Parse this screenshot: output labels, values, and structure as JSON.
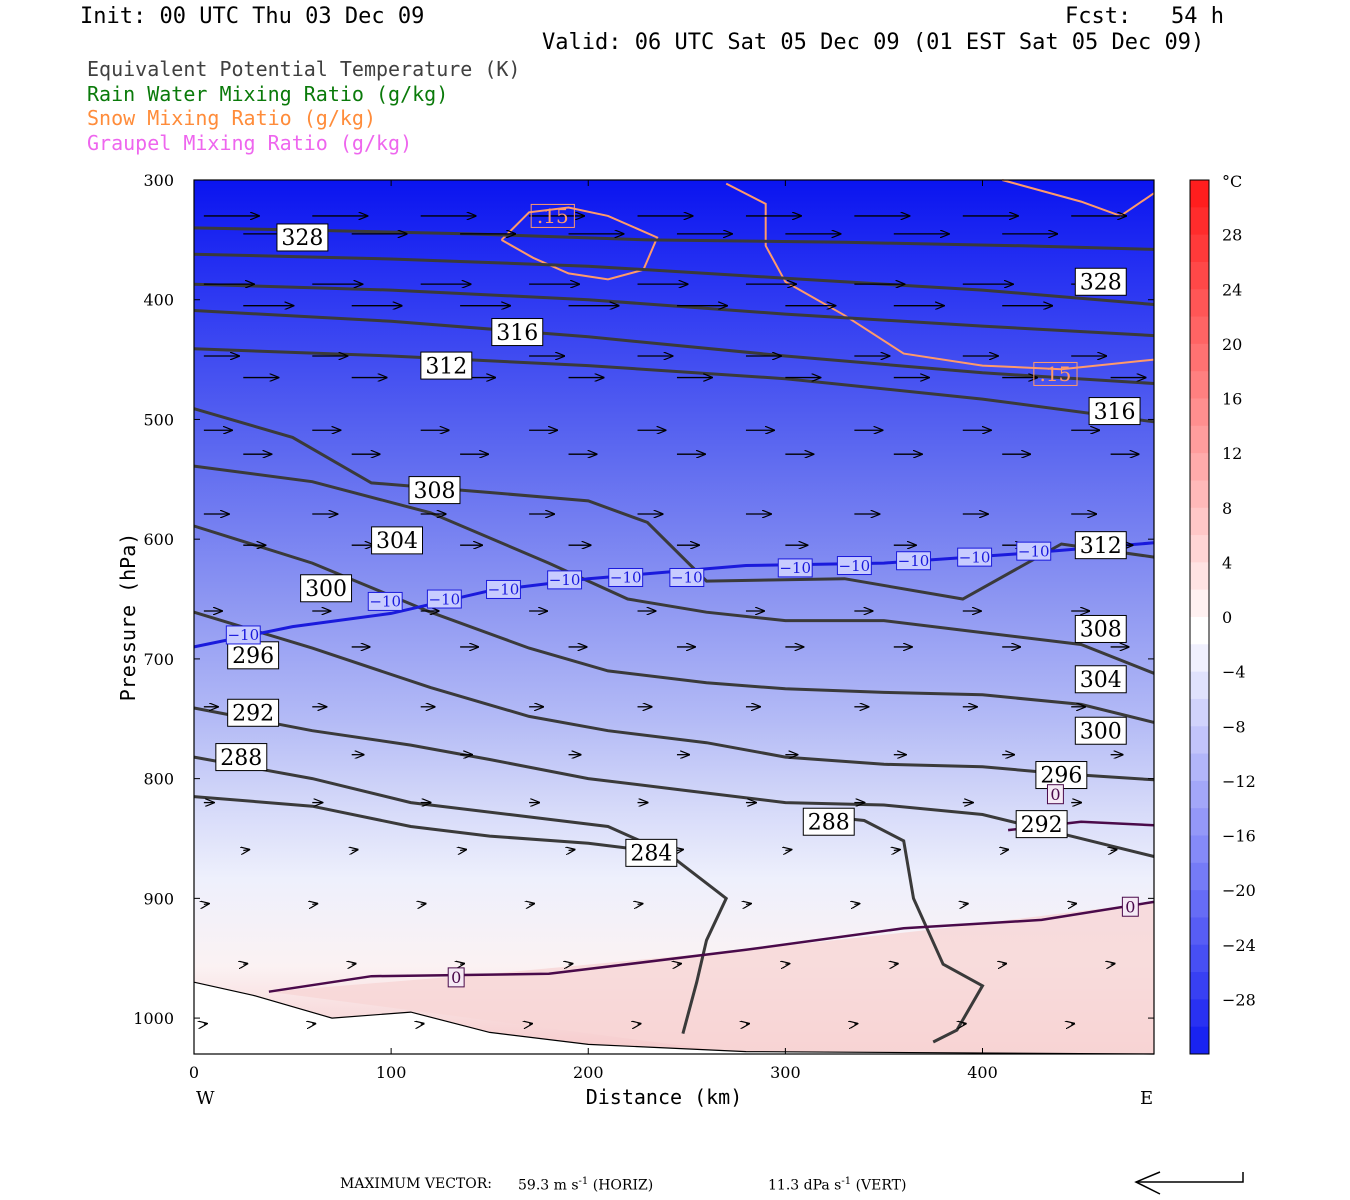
{
  "header": {
    "init": "Init: 00 UTC Thu 03 Dec 09",
    "fcst": "Fcst:   54 h",
    "valid": "Valid: 06 UTC Sat 05 Dec 09 (01 EST Sat 05 Dec 09)"
  },
  "legend": [
    {
      "label": "Equivalent Potential Temperature (K)",
      "color": "#404040"
    },
    {
      "label": "Rain Water Mixing Ratio (g/kg)",
      "color": "#0a7a0a"
    },
    {
      "label": "Snow Mixing Ratio (g/kg)",
      "color": "#ff8c3a"
    },
    {
      "label": "Graupel Mixing Ratio (g/kg)",
      "color": "#ee66ee"
    }
  ],
  "footer": {
    "max_vector_label": "MAXIMUM VECTOR:",
    "horiz_value": "59.3",
    "horiz_unit": "m s",
    "horiz_tag": "(HORIZ)",
    "vert_value": "11.3",
    "vert_unit": "dPa s",
    "vert_tag": "(VERT)",
    "exponent": "-1"
  },
  "chart_data": {
    "type": "contour",
    "xlabel": "Distance (km)",
    "ylabel": "Pressure (hPa)",
    "xlim": [
      0,
      487
    ],
    "ylim": [
      1030,
      300
    ],
    "x_ticks": [
      0,
      100,
      200,
      300,
      400
    ],
    "y_ticks": [
      300,
      400,
      500,
      600,
      700,
      800,
      900,
      1000
    ],
    "x_end_labels": {
      "left": "W",
      "right": "E"
    },
    "colorbar": {
      "unit": "°C",
      "ticks": [
        28,
        24,
        20,
        16,
        12,
        8,
        4,
        0,
        -4,
        -8,
        -12,
        -16,
        -20,
        -24,
        -28
      ],
      "range": [
        -32,
        32
      ]
    },
    "theta_e_contours": [
      {
        "value": 328,
        "points": [
          [
            0,
            340
          ],
          [
            60,
            342
          ],
          [
            140,
            345
          ],
          [
            230,
            350
          ],
          [
            330,
            352
          ],
          [
            420,
            355
          ],
          [
            487,
            358
          ]
        ]
      },
      {
        "value": 324,
        "points": [
          [
            0,
            362
          ],
          [
            100,
            366
          ],
          [
            200,
            372
          ],
          [
            300,
            382
          ],
          [
            400,
            392
          ],
          [
            487,
            404
          ]
        ]
      },
      {
        "value": 320,
        "points": [
          [
            0,
            387
          ],
          [
            100,
            392
          ],
          [
            200,
            400
          ],
          [
            300,
            412
          ],
          [
            400,
            422
          ],
          [
            487,
            430
          ]
        ]
      },
      {
        "value": 316,
        "points": [
          [
            0,
            409
          ],
          [
            100,
            418
          ],
          [
            200,
            431
          ],
          [
            300,
            447
          ],
          [
            400,
            461
          ],
          [
            487,
            470
          ]
        ]
      },
      {
        "value": 312,
        "points": [
          [
            0,
            441
          ],
          [
            100,
            447
          ],
          [
            200,
            455
          ],
          [
            300,
            466
          ],
          [
            400,
            483
          ],
          [
            487,
            502
          ]
        ]
      },
      {
        "value": 308,
        "points": [
          [
            0,
            491
          ],
          [
            50,
            515
          ],
          [
            90,
            553
          ],
          [
            150,
            561
          ],
          [
            200,
            568
          ],
          [
            230,
            586
          ],
          [
            260,
            635
          ],
          [
            330,
            633
          ],
          [
            390,
            650
          ],
          [
            440,
            604
          ],
          [
            487,
            615
          ]
        ]
      },
      {
        "value": 304,
        "points": [
          [
            0,
            539
          ],
          [
            60,
            552
          ],
          [
            120,
            578
          ],
          [
            180,
            620
          ],
          [
            220,
            650
          ],
          [
            260,
            661
          ],
          [
            300,
            668
          ],
          [
            350,
            668
          ],
          [
            400,
            678
          ],
          [
            450,
            688
          ],
          [
            487,
            712
          ]
        ]
      },
      {
        "value": 300,
        "points": [
          [
            0,
            589
          ],
          [
            60,
            620
          ],
          [
            120,
            661
          ],
          [
            170,
            691
          ],
          [
            210,
            710
          ],
          [
            260,
            720
          ],
          [
            300,
            725
          ],
          [
            350,
            728
          ],
          [
            400,
            730
          ],
          [
            450,
            738
          ],
          [
            487,
            753
          ]
        ]
      },
      {
        "value": 296,
        "points": [
          [
            0,
            661
          ],
          [
            60,
            691
          ],
          [
            120,
            724
          ],
          [
            170,
            748
          ],
          [
            210,
            760
          ],
          [
            260,
            770
          ],
          [
            300,
            782
          ],
          [
            350,
            788
          ],
          [
            400,
            790
          ],
          [
            440,
            796
          ],
          [
            487,
            801
          ]
        ]
      },
      {
        "value": 292,
        "points": [
          [
            0,
            741
          ],
          [
            60,
            760
          ],
          [
            110,
            772
          ],
          [
            150,
            784
          ],
          [
            200,
            800
          ],
          [
            250,
            810
          ],
          [
            300,
            820
          ],
          [
            350,
            822
          ],
          [
            400,
            830
          ],
          [
            440,
            846
          ],
          [
            487,
            865
          ]
        ]
      },
      {
        "value": 288,
        "points": [
          [
            0,
            782
          ],
          [
            60,
            800
          ],
          [
            110,
            820
          ],
          [
            160,
            830
          ],
          [
            210,
            840
          ],
          [
            240,
            862
          ],
          [
            270,
            900
          ],
          [
            260,
            935
          ],
          [
            255,
            970
          ],
          [
            248,
            1013
          ]
        ]
      },
      {
        "value": 288,
        "points": [
          [
            310,
            830
          ],
          [
            340,
            835
          ],
          [
            360,
            852
          ],
          [
            365,
            900
          ],
          [
            380,
            955
          ],
          [
            400,
            973
          ],
          [
            387,
            1010
          ],
          [
            375,
            1020
          ]
        ]
      },
      {
        "value": 284,
        "points": [
          [
            0,
            815
          ],
          [
            60,
            823
          ],
          [
            110,
            840
          ],
          [
            150,
            848
          ],
          [
            200,
            854
          ],
          [
            240,
            862
          ]
        ]
      }
    ],
    "temperature_zero_contours": [
      {
        "points": [
          [
            38,
            978
          ],
          [
            90,
            965
          ],
          [
            180,
            963
          ],
          [
            280,
            943
          ],
          [
            360,
            925
          ],
          [
            430,
            918
          ],
          [
            487,
            903
          ]
        ]
      },
      {
        "points": [
          [
            413,
            843
          ],
          [
            450,
            836
          ],
          [
            487,
            839
          ]
        ]
      }
    ],
    "temperature_m10_contour": {
      "points": [
        [
          0,
          690
        ],
        [
          50,
          673
        ],
        [
          100,
          662
        ],
        [
          150,
          643
        ],
        [
          200,
          633
        ],
        [
          280,
          622
        ],
        [
          350,
          620
        ],
        [
          420,
          612
        ],
        [
          487,
          603
        ]
      ]
    },
    "snow_contours": [
      {
        "points": [
          [
            156,
            350
          ],
          [
            170,
            327
          ],
          [
            190,
            323
          ],
          [
            210,
            330
          ],
          [
            235,
            348
          ],
          [
            228,
            375
          ],
          [
            210,
            383
          ],
          [
            190,
            378
          ],
          [
            172,
            365
          ],
          [
            156,
            350
          ]
        ]
      },
      {
        "points": [
          [
            270,
            303
          ],
          [
            290,
            320
          ],
          [
            290,
            355
          ],
          [
            300,
            385
          ],
          [
            330,
            413
          ],
          [
            360,
            445
          ],
          [
            400,
            455
          ],
          [
            440,
            458
          ],
          [
            487,
            450
          ]
        ]
      },
      {
        "points": [
          [
            410,
            300
          ],
          [
            450,
            318
          ],
          [
            470,
            330
          ],
          [
            487,
            311
          ]
        ]
      }
    ],
    "terrain_line": {
      "points": [
        [
          0,
          970
        ],
        [
          30,
          981
        ],
        [
          70,
          1000
        ],
        [
          110,
          995
        ],
        [
          150,
          1012
        ],
        [
          200,
          1022
        ],
        [
          280,
          1028
        ],
        [
          487,
          1030
        ]
      ]
    },
    "labels": [
      {
        "text": "328",
        "x": 55,
        "y": 348,
        "kind": "theta"
      },
      {
        "text": "328",
        "x": 460,
        "y": 385,
        "kind": "theta"
      },
      {
        "text": "316",
        "x": 164,
        "y": 427,
        "kind": "theta"
      },
      {
        "text": "312",
        "x": 128,
        "y": 455,
        "kind": "theta"
      },
      {
        "text": "316",
        "x": 467,
        "y": 493,
        "kind": "theta"
      },
      {
        "text": "308",
        "x": 122,
        "y": 559,
        "kind": "theta"
      },
      {
        "text": "304",
        "x": 103,
        "y": 601,
        "kind": "theta"
      },
      {
        "text": "312",
        "x": 460,
        "y": 605,
        "kind": "theta"
      },
      {
        "text": "300",
        "x": 67,
        "y": 641,
        "kind": "theta"
      },
      {
        "text": "308",
        "x": 460,
        "y": 675,
        "kind": "theta"
      },
      {
        "text": "296",
        "x": 30,
        "y": 697,
        "kind": "theta"
      },
      {
        "text": "304",
        "x": 460,
        "y": 717,
        "kind": "theta"
      },
      {
        "text": "292",
        "x": 30,
        "y": 745,
        "kind": "theta"
      },
      {
        "text": "300",
        "x": 460,
        "y": 760,
        "kind": "theta"
      },
      {
        "text": "288",
        "x": 24,
        "y": 782,
        "kind": "theta"
      },
      {
        "text": "296",
        "x": 440,
        "y": 797,
        "kind": "theta"
      },
      {
        "text": "288",
        "x": 322,
        "y": 836,
        "kind": "theta"
      },
      {
        "text": "292",
        "x": 430,
        "y": 838,
        "kind": "theta"
      },
      {
        "text": "284",
        "x": 232,
        "y": 862,
        "kind": "theta"
      },
      {
        "text": ".15",
        "x": 182,
        "y": 330,
        "kind": "snow"
      },
      {
        "text": ".15",
        "x": 437,
        "y": 462,
        "kind": "snow"
      },
      {
        "text": "−10",
        "x": 25,
        "y": 680,
        "kind": "temp"
      },
      {
        "text": "−10",
        "x": 97,
        "y": 652,
        "kind": "temp"
      },
      {
        "text": "−10",
        "x": 127,
        "y": 650,
        "kind": "temp"
      },
      {
        "text": "−10",
        "x": 157,
        "y": 642,
        "kind": "temp"
      },
      {
        "text": "−10",
        "x": 188,
        "y": 634,
        "kind": "temp"
      },
      {
        "text": "−10",
        "x": 219,
        "y": 632,
        "kind": "temp"
      },
      {
        "text": "−10",
        "x": 250,
        "y": 632,
        "kind": "temp"
      },
      {
        "text": "−10",
        "x": 305,
        "y": 624,
        "kind": "temp"
      },
      {
        "text": "−10",
        "x": 335,
        "y": 622,
        "kind": "temp"
      },
      {
        "text": "−10",
        "x": 365,
        "y": 618,
        "kind": "temp"
      },
      {
        "text": "−10",
        "x": 396,
        "y": 615,
        "kind": "temp"
      },
      {
        "text": "−10",
        "x": 426,
        "y": 610,
        "kind": "temp"
      },
      {
        "text": "0",
        "x": 133,
        "y": 966,
        "kind": "zero"
      },
      {
        "text": "0",
        "x": 475,
        "y": 907,
        "kind": "zero"
      },
      {
        "text": "0",
        "x": 437,
        "y": 813,
        "kind": "zero"
      }
    ],
    "wind_vectors": {
      "note": "horizontal wind arrows, u and v in plot units",
      "rows": [
        {
          "p": 330,
          "u": 55
        },
        {
          "p": 345,
          "u": 55
        },
        {
          "p": 387,
          "u": 50
        },
        {
          "p": 405,
          "u": 50
        },
        {
          "p": 447,
          "u": 35
        },
        {
          "p": 465,
          "u": 35
        },
        {
          "p": 509,
          "u": 28
        },
        {
          "p": 529,
          "u": 28
        },
        {
          "p": 579,
          "u": 25
        },
        {
          "p": 605,
          "u": 22
        },
        {
          "p": 660,
          "u": 18
        },
        {
          "p": 690,
          "u": 18
        },
        {
          "p": 740,
          "u": 14
        },
        {
          "p": 780,
          "u": 12
        },
        {
          "p": 820,
          "u": 10
        },
        {
          "p": 860,
          "u": 6
        },
        {
          "p": 905,
          "u": 5
        },
        {
          "p": 955,
          "u": 4
        },
        {
          "p": 1005,
          "u": 3
        }
      ]
    }
  }
}
